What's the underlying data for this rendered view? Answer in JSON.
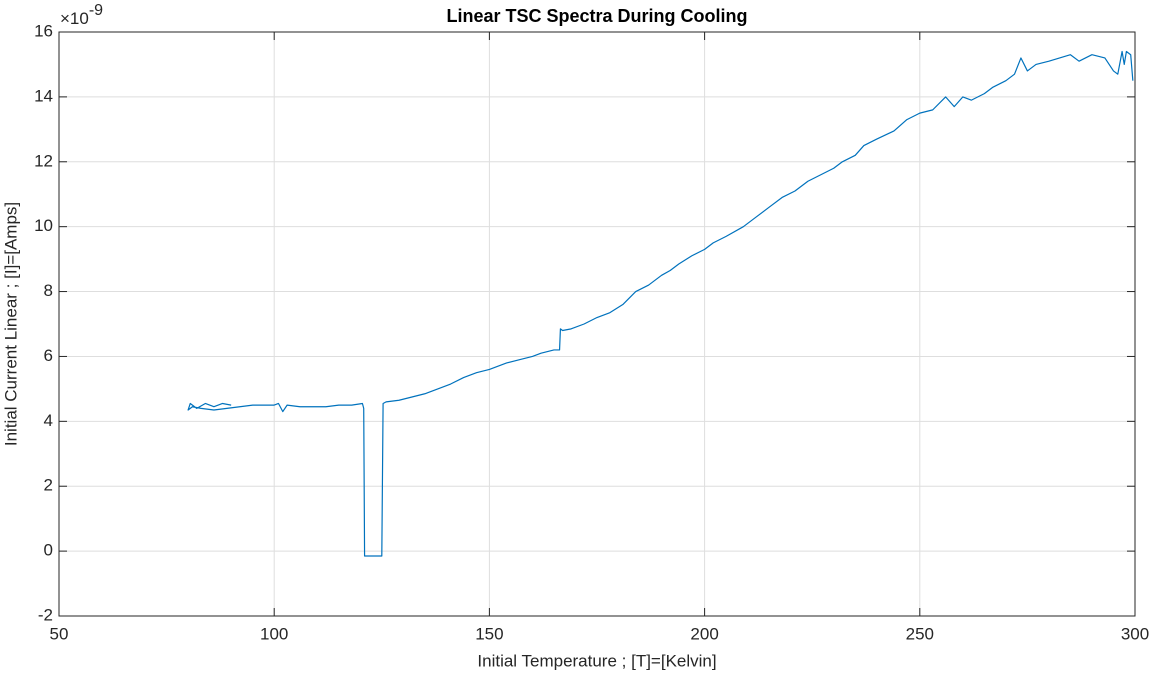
{
  "chart_data": {
    "type": "line",
    "title": "Linear TSC Spectra During Cooling",
    "xlabel": "Initial Temperature ; [T]=[Kelvin]",
    "ylabel": "Initial Current Linear ; [I]=[Amps]",
    "y_exponent": {
      "base": "×10",
      "power": "-9"
    },
    "x": [
      299.5,
      299,
      298,
      297.5,
      297,
      296,
      295,
      293,
      290,
      287,
      285,
      280,
      277,
      275,
      273.5,
      272,
      270,
      267,
      265,
      262,
      260,
      258,
      256,
      253,
      250,
      247,
      244,
      240,
      237,
      235,
      232,
      230,
      227,
      224,
      221,
      218,
      215,
      212,
      209,
      205,
      202,
      200,
      197,
      194,
      192,
      190,
      187,
      184,
      181,
      178,
      175,
      172,
      169,
      167,
      166.5,
      166.3,
      165,
      162,
      160,
      157,
      154,
      150,
      147,
      144,
      141,
      138,
      135,
      132,
      129,
      126,
      125.3,
      125,
      121,
      120.8,
      120.5,
      118,
      115,
      112,
      109,
      106,
      103,
      102,
      101,
      100,
      98,
      95,
      92,
      89,
      86,
      83,
      81,
      80,
      80.5,
      82,
      84,
      86,
      88,
      90
    ],
    "series": [
      {
        "color": "#0072bd",
        "values": [
          14.5,
          15.3,
          15.4,
          15.0,
          15.4,
          14.7,
          14.8,
          15.2,
          15.3,
          15.1,
          15.3,
          15.1,
          15.0,
          14.8,
          15.2,
          14.7,
          14.5,
          14.3,
          14.1,
          13.9,
          14.0,
          13.7,
          14.0,
          13.6,
          13.5,
          13.3,
          12.95,
          12.7,
          12.5,
          12.2,
          12.0,
          11.8,
          11.6,
          11.4,
          11.1,
          10.9,
          10.6,
          10.3,
          10.0,
          9.7,
          9.5,
          9.3,
          9.1,
          8.85,
          8.65,
          8.5,
          8.2,
          8.0,
          7.6,
          7.35,
          7.2,
          7.0,
          6.85,
          6.8,
          6.85,
          6.2,
          6.2,
          6.1,
          6.0,
          5.9,
          5.8,
          5.6,
          5.5,
          5.35,
          5.15,
          5.0,
          4.85,
          4.75,
          4.65,
          4.6,
          4.55,
          -0.15,
          -0.15,
          4.4,
          4.55,
          4.5,
          4.5,
          4.45,
          4.45,
          4.45,
          4.5,
          4.3,
          4.55,
          4.5,
          4.5,
          4.5,
          4.45,
          4.4,
          4.35,
          4.4,
          4.45,
          4.35,
          4.55,
          4.4,
          4.55,
          4.45,
          4.55,
          4.5
        ]
      }
    ],
    "xlim": [
      50,
      300
    ],
    "ylim": [
      -2,
      16
    ],
    "xticks": [
      50,
      100,
      150,
      200,
      250,
      300
    ],
    "yticks": [
      -2,
      0,
      2,
      4,
      6,
      8,
      10,
      12,
      14,
      16
    ],
    "grid": true
  }
}
